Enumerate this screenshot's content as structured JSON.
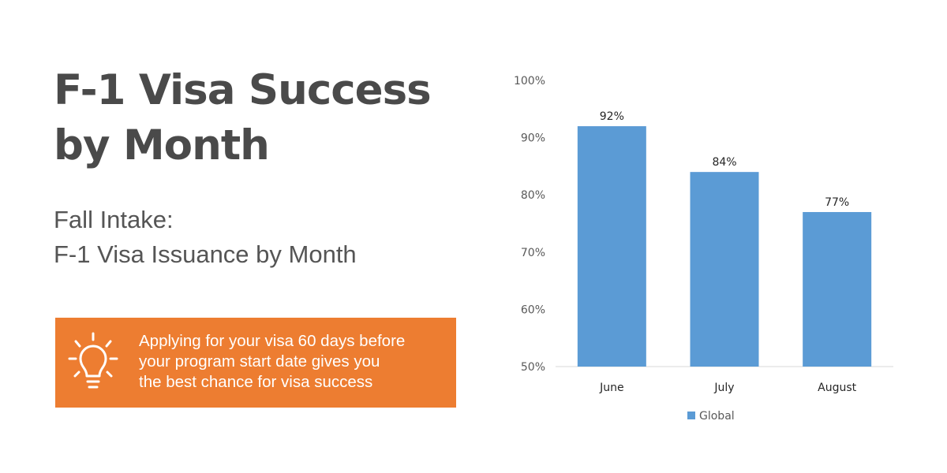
{
  "header": {
    "title_line1": "F-1 Visa Success",
    "title_line2": "by Month",
    "subtitle_line1": "Fall Intake:",
    "subtitle_line2": "F-1 Visa Issuance by Month"
  },
  "tip": {
    "icon": "lightbulb-icon",
    "line1": "Applying for your visa 60 days before",
    "line2": "your program start date gives you",
    "line3": "the best chance for visa success",
    "background": "#ed7d31"
  },
  "chart_data": {
    "type": "bar",
    "categories": [
      "June",
      "July",
      "August"
    ],
    "series": [
      {
        "name": "Global",
        "values": [
          92,
          84,
          77
        ],
        "color": "#5b9bd5"
      }
    ],
    "data_labels": [
      "92%",
      "84%",
      "77%"
    ],
    "ylim": [
      50,
      100
    ],
    "yticks": [
      50,
      60,
      70,
      80,
      90,
      100
    ],
    "ytick_labels": [
      "50%",
      "60%",
      "70%",
      "80%",
      "90%",
      "100%"
    ],
    "grid": false,
    "legend": "bottom"
  }
}
